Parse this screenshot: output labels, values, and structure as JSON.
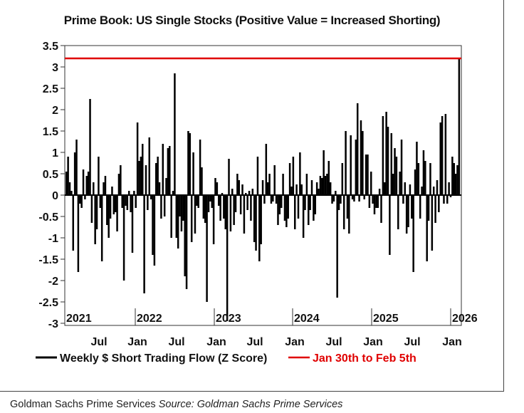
{
  "chart_data": {
    "type": "bar",
    "title": "Prime Book: US Single Stocks (Positive Value = Increased Shorting)",
    "ylim": [
      -3.05,
      3.5
    ],
    "y_ticks": [
      "3.5",
      "3",
      "2.5",
      "2",
      "1.5",
      "1",
      "0.5",
      "0",
      "-0.5",
      "-1",
      "-1.5",
      "-2",
      "-2.5",
      "-3"
    ],
    "y_tick_values": [
      3.5,
      3,
      2.5,
      2,
      1.5,
      1,
      0.5,
      0,
      -0.5,
      -1,
      -1.5,
      -2,
      -2.5,
      -3
    ],
    "year_labels": [
      "2021",
      "2022",
      "2023",
      "2024",
      "2025",
      "2026"
    ],
    "month_labels": [
      "Jul",
      "Jan",
      "Jul",
      "Jan",
      "Jul",
      "Jan",
      "Jul",
      "Jan",
      "Jul",
      "Jan"
    ],
    "x_start": "2021-01",
    "x_end": "2026-02",
    "reference_line": {
      "name": "Jan 30th to Feb 5th",
      "value": 3.2,
      "color": "#e00000"
    },
    "series": [
      {
        "name": "Weekly $ Short Trading Flow (Z Score)",
        "color": "#000000",
        "values": [
          0.55,
          0.9,
          0.3,
          0.1,
          -1.3,
          1.0,
          1.3,
          -1.8,
          -0.2,
          -0.3,
          0.6,
          -0.1,
          0.45,
          0.55,
          2.25,
          -0.65,
          0.3,
          -1.15,
          -0.8,
          0.9,
          -0.3,
          -1.55,
          0.3,
          0.45,
          -0.7,
          -1.0,
          -0.55,
          0.2,
          -0.45,
          -0.4,
          -0.85,
          0.5,
          0.7,
          -0.3,
          -2.0,
          -0.25,
          -0.35,
          0.1,
          -0.4,
          -1.35,
          0.1,
          -0.3,
          1.7,
          0.8,
          0.9,
          1.2,
          -2.3,
          0.7,
          -0.35,
          1.35,
          -0.1,
          -1.4,
          -1.65,
          0.75,
          0.9,
          0.3,
          -0.55,
          1.2,
          -0.5,
          0.4,
          1.1,
          1.15,
          -1.0,
          0.1,
          2.85,
          -1.0,
          -1.25,
          -0.5,
          -0.85,
          -0.6,
          -1.9,
          -2.2,
          1.5,
          1.45,
          -1.1,
          1.0,
          -0.9,
          -0.25,
          -0.3,
          1.3,
          0.65,
          -0.55,
          -0.65,
          -2.5,
          -0.4,
          -0.15,
          -0.3,
          -1.15,
          0.4,
          0.3,
          -0.25,
          -0.6,
          0.05,
          -0.55,
          -0.8,
          -2.95,
          0.85,
          -0.85,
          0.15,
          -0.7,
          -0.4,
          0.5,
          0.35,
          -0.45,
          0.25,
          -0.9,
          0.05,
          -0.35,
          0.1,
          -0.6,
          0.15,
          -1.1,
          -1.3,
          0.9,
          -1.55,
          -1.15,
          0.35,
          -0.2,
          1.2,
          0.3,
          0.5,
          -0.2,
          -0.15,
          0.7,
          -0.2,
          -0.7,
          -0.45,
          -0.3,
          0.5,
          -0.6,
          -0.75,
          -0.55,
          0.75,
          0.2,
          0.9,
          -0.8,
          0.25,
          -0.55,
          1.0,
          0.25,
          -1.0,
          -0.35,
          0.5,
          -0.7,
          -0.35,
          0.35,
          -0.6,
          -0.45,
          0.3,
          0.15,
          0.45,
          0.4,
          1.05,
          0.45,
          0.5,
          0.8,
          0.3,
          -0.2,
          -0.15,
          0.1,
          -2.4,
          -0.35,
          -0.2,
          0.75,
          -0.8,
          1.5,
          -0.55,
          -0.9,
          1.4,
          -0.1,
          -0.15,
          1.3,
          2.15,
          -0.15,
          1.75,
          1.5,
          -0.1,
          0.95,
          0.95,
          -0.3,
          0.55,
          -0.2,
          -0.45,
          -0.3,
          -0.3,
          0.15,
          -0.65,
          1.85,
          0.3,
          1.95,
          1.6,
          -1.4,
          1.45,
          0.5,
          1.1,
          0.9,
          -0.8,
          0.55,
          1.3,
          -0.2,
          0.3,
          -0.9,
          -0.75,
          0.25,
          -0.55,
          -1.8,
          0.6,
          1.25,
          0.75,
          -0.55,
          0.2,
          1.05,
          0.8,
          -1.55,
          -0.6,
          0.75,
          -1.3,
          0.2,
          -0.65,
          0.35,
          -0.4,
          1.7,
          1.85,
          -0.2,
          1.9,
          -0.2,
          0.3,
          -0.05,
          0.9,
          0.75,
          0.5,
          0.7,
          3.2
        ]
      }
    ]
  },
  "legend": {
    "series_label": "Weekly $ Short Trading Flow (Z Score)",
    "reference_label": "Jan 30th to Feb 5th"
  },
  "footer": {
    "source_prefix": "Goldman Sachs Prime Services",
    "source_italic": "Source: Goldman Sachs Prime Services"
  }
}
